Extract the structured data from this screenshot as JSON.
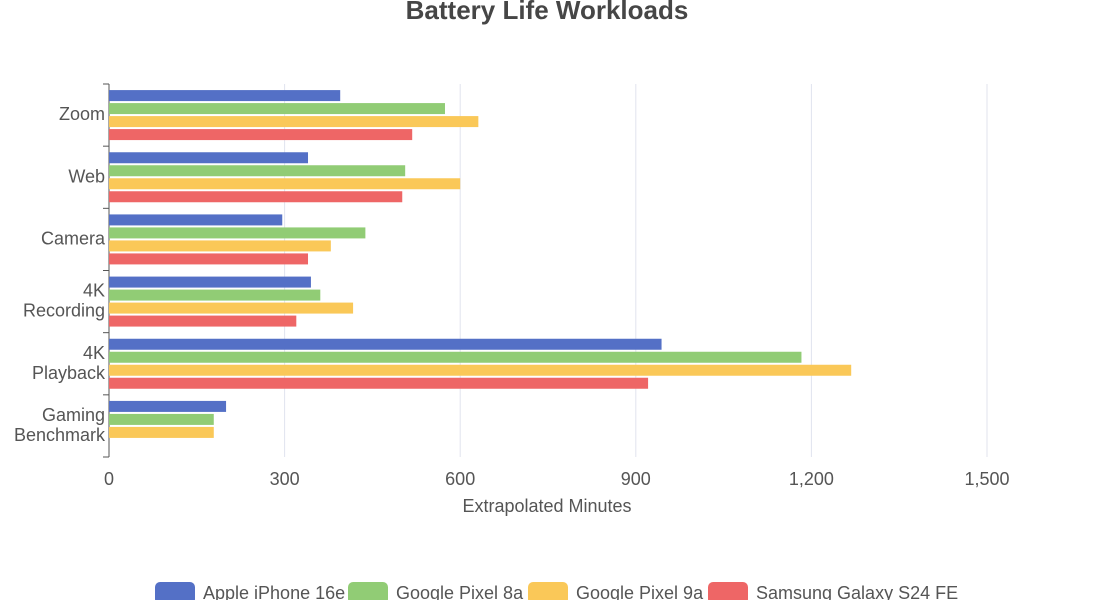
{
  "chart_data": {
    "type": "bar",
    "orientation": "horizontal",
    "title": "Battery Life Workloads",
    "x_label": "Extrapolated Minutes",
    "categories": [
      "Zoom",
      "Web",
      "Camera",
      "4K Recording",
      "4K Playback",
      "Gaming Benchmark"
    ],
    "series": [
      {
        "name": "Apple iPhone 16e",
        "color": "#5470c6",
        "values": [
          395,
          340,
          296,
          345,
          944,
          200
        ]
      },
      {
        "name": "Google Pixel 8a",
        "color": "#91cc75",
        "values": [
          574,
          506,
          438,
          361,
          1183,
          179
        ]
      },
      {
        "name": "Google Pixel 9a",
        "color": "#fac858",
        "values": [
          631,
          600,
          379,
          417,
          1268,
          179
        ]
      },
      {
        "name": "Samsung Galaxy S24 FE",
        "color": "#ee6666",
        "values": [
          518,
          501,
          340,
          320,
          921,
          null
        ]
      }
    ],
    "xlim": [
      0,
      1500
    ],
    "xticks": [
      0,
      300,
      600,
      900,
      {
        "value": 1200,
        "label": "1,200"
      },
      {
        "value": 1500,
        "label": "1,500"
      }
    ],
    "grid": true,
    "legend": "bottom"
  }
}
